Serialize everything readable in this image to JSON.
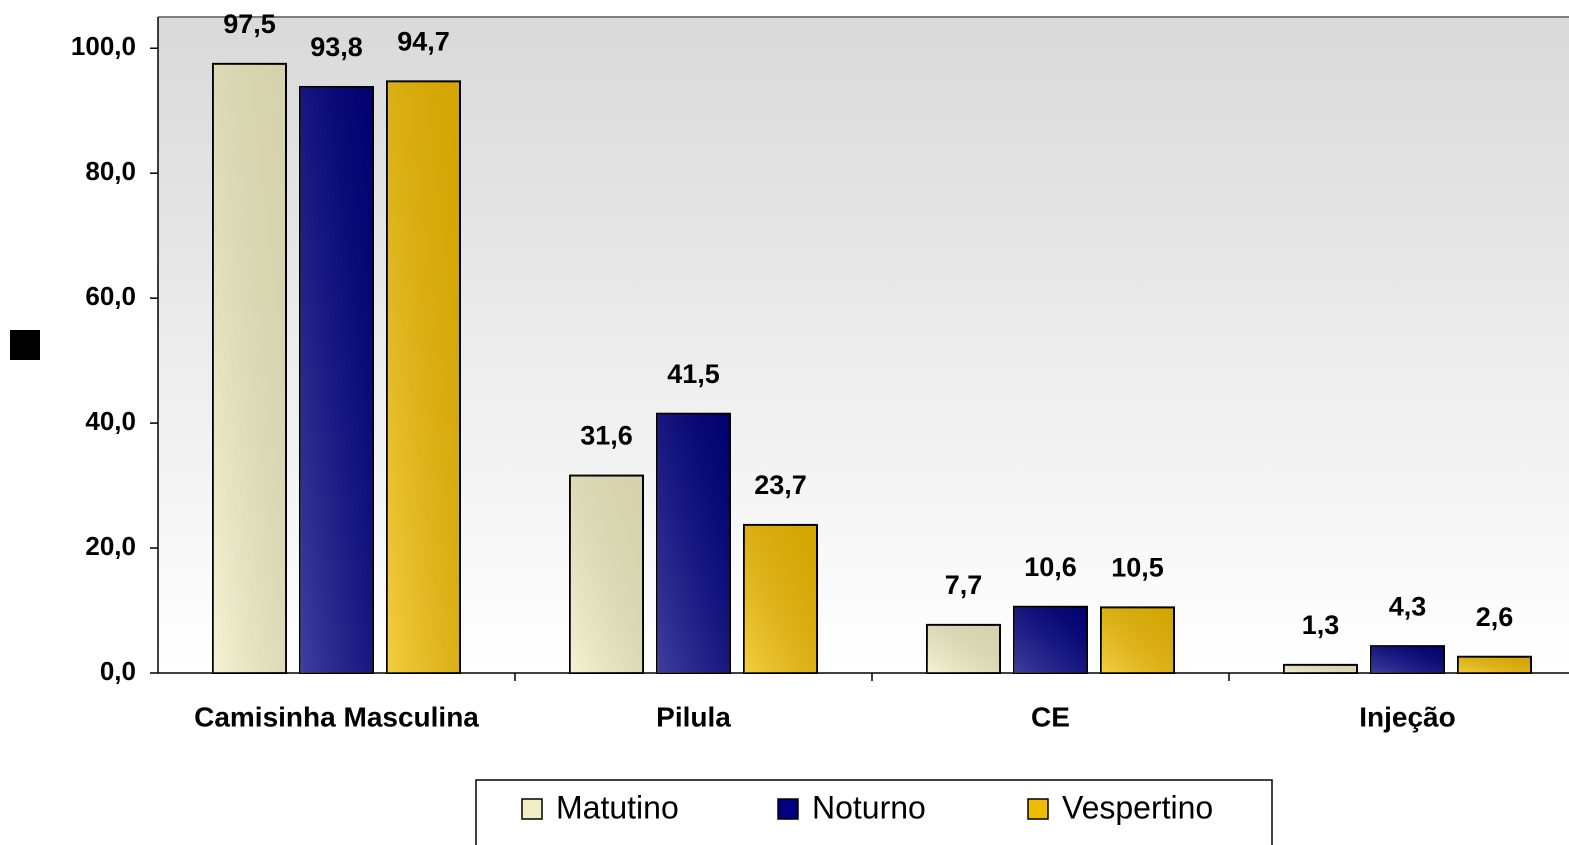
{
  "chart_data": {
    "type": "bar",
    "categories": [
      "Camisinha Masculina",
      "Pilula",
      "CE",
      "Injeção"
    ],
    "series": [
      {
        "name": "Matutino",
        "color": "#f2efc4",
        "values": [
          97.5,
          31.6,
          7.7,
          1.3
        ],
        "value_labels": [
          "97,5",
          "31,6",
          "7,7",
          "1,3"
        ]
      },
      {
        "name": "Noturno",
        "color": "#000080",
        "values": [
          93.8,
          41.5,
          10.6,
          4.3
        ],
        "value_labels": [
          "93,8",
          "41,5",
          "10,6",
          "4,3"
        ]
      },
      {
        "name": "Vespertino",
        "color": "#f0bc00",
        "values": [
          94.7,
          23.7,
          10.5,
          2.6
        ],
        "value_labels": [
          "94,7",
          "23,7",
          "10,5",
          "2,6"
        ]
      }
    ],
    "ylim": [
      0,
      105
    ],
    "yticks": [
      {
        "value": 0,
        "label": "0,0"
      },
      {
        "value": 20,
        "label": "20,0"
      },
      {
        "value": 40,
        "label": "40,0"
      },
      {
        "value": 60,
        "label": "60,0"
      },
      {
        "value": 80,
        "label": "80,0"
      },
      {
        "value": 100,
        "label": "100,0"
      }
    ],
    "legend": "bottom"
  }
}
